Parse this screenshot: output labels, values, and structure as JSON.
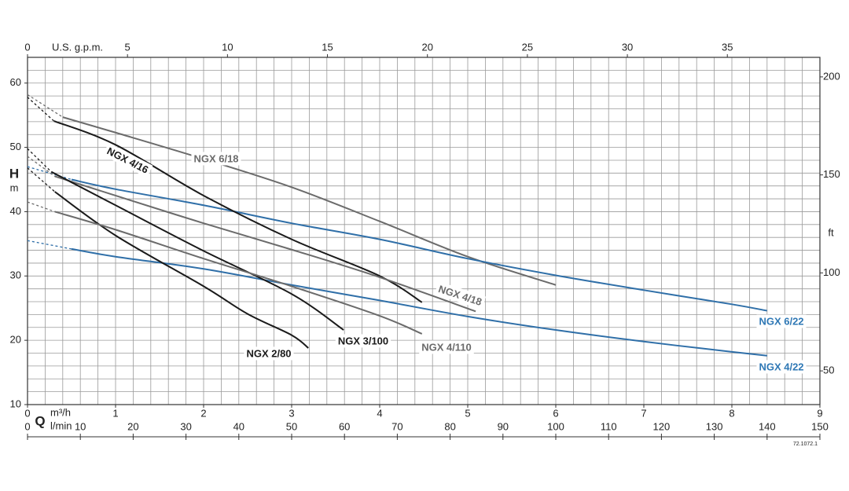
{
  "chart_data": {
    "type": "line",
    "y_label": "H",
    "y_unit": "m",
    "ylim": [
      10,
      64
    ],
    "yticks": [
      10,
      20,
      30,
      40,
      50,
      60
    ],
    "y2_label": "ft",
    "y2lim": [
      32.81,
      209.97
    ],
    "y2ticks": [
      50,
      100,
      150,
      200
    ],
    "x_label": "Q",
    "x_unit": "m³/h",
    "xlim": [
      0,
      9
    ],
    "xticks": [
      0,
      1,
      2,
      3,
      4,
      5,
      6,
      7,
      8,
      9
    ],
    "x2_unit": "l/min",
    "x2lim": [
      0,
      150
    ],
    "x2ticks": [
      0,
      10,
      20,
      30,
      40,
      50,
      60,
      70,
      80,
      90,
      100,
      110,
      120,
      130,
      140,
      150
    ],
    "top_unit": "U.S. g.p.m.",
    "toplim": [
      0,
      39.63
    ],
    "topticks": [
      0,
      5,
      10,
      15,
      20,
      25,
      30,
      35
    ],
    "grid": {
      "x_step": 0.2,
      "y_step": 2
    },
    "dashed_segments": 1,
    "series": [
      {
        "name": "NGX 6/18",
        "color": "#6b6b6b",
        "x": [
          0,
          0.4,
          1,
          2,
          3,
          4,
          5,
          6
        ],
        "values": [
          58.2,
          54.7,
          52.3,
          48.2,
          43.8,
          38.5,
          33.0,
          28.6
        ]
      },
      {
        "name": "NGX 6/22",
        "color": "#2f6fa8",
        "x": [
          0,
          0.5,
          1,
          2,
          3,
          4,
          5,
          6,
          7,
          8,
          8.4
        ],
        "values": [
          47.0,
          45.0,
          43.5,
          41.0,
          38.2,
          35.7,
          32.7,
          30.1,
          27.8,
          25.6,
          24.6
        ]
      },
      {
        "name": "NGX 4/22",
        "color": "#2f6fa8",
        "x": [
          0,
          0.5,
          1,
          2,
          3,
          4,
          5,
          6,
          7,
          8,
          8.4
        ],
        "values": [
          35.5,
          34.2,
          33.0,
          31.1,
          28.6,
          26.2,
          23.7,
          21.6,
          19.8,
          18.2,
          17.6
        ]
      },
      {
        "name": "NGX 4/16",
        "color": "#1a1a1a",
        "x": [
          0,
          0.3,
          1,
          2,
          3,
          4,
          4.48
        ],
        "values": [
          57.8,
          54.1,
          50.4,
          42.5,
          35.7,
          30.0,
          25.9
        ]
      },
      {
        "name": "NGX 4/18",
        "color": "#6b6b6b",
        "x": [
          0,
          0.31,
          1,
          2,
          3,
          4,
          5.09
        ],
        "values": [
          48.6,
          45.5,
          42.5,
          38.2,
          34.1,
          29.8,
          24.5
        ]
      },
      {
        "name": "NGX 3/100",
        "color": "#1a1a1a",
        "x": [
          0,
          0.27,
          1,
          2,
          3,
          3.59
        ],
        "values": [
          49.8,
          46.2,
          41.0,
          33.9,
          27.2,
          21.6
        ]
      },
      {
        "name": "NGX 2/80",
        "color": "#1a1a1a",
        "x": [
          0,
          0.31,
          1,
          2,
          2.5,
          3,
          3.19
        ],
        "values": [
          46.8,
          43.1,
          36.3,
          28.4,
          24.1,
          20.8,
          18.8
        ]
      },
      {
        "name": "NGX 4/110",
        "color": "#6b6b6b",
        "x": [
          0,
          0.31,
          1,
          2,
          3,
          4,
          4.48
        ],
        "values": [
          41.5,
          40.0,
          37.2,
          32.7,
          28.4,
          23.8,
          21.0
        ]
      }
    ],
    "footnote": "72.1072.1"
  }
}
